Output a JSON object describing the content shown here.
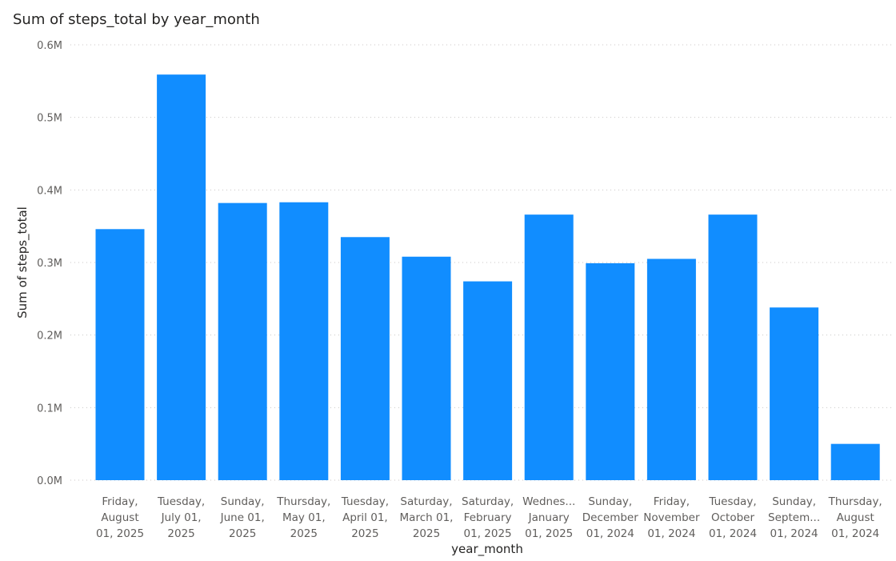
{
  "chart_data": {
    "type": "bar",
    "title": "Sum of steps_total by year_month",
    "xlabel": "year_month",
    "ylabel": "Sum of steps_total",
    "ylim": [
      0,
      600000
    ],
    "yticks": [
      0,
      100000,
      200000,
      300000,
      400000,
      500000,
      600000
    ],
    "ytick_labels": [
      "0.0M",
      "0.1M",
      "0.2M",
      "0.3M",
      "0.4M",
      "0.5M",
      "0.6M"
    ],
    "grid": true,
    "bar_color": "#118DFF",
    "categories": [
      [
        "Friday,",
        "August",
        "01, 2025"
      ],
      [
        "Tuesday,",
        "July 01,",
        "2025"
      ],
      [
        "Sunday,",
        "June 01,",
        "2025"
      ],
      [
        "Thursday,",
        "May 01,",
        "2025"
      ],
      [
        "Tuesday,",
        "April 01,",
        "2025"
      ],
      [
        "Saturday,",
        "March 01,",
        "2025"
      ],
      [
        "Saturday,",
        "February",
        "01, 2025"
      ],
      [
        "Wednes...",
        "January",
        "01, 2025"
      ],
      [
        "Sunday,",
        "December",
        "01, 2024"
      ],
      [
        "Friday,",
        "November",
        "01, 2024"
      ],
      [
        "Tuesday,",
        "October",
        "01, 2024"
      ],
      [
        "Sunday,",
        "Septem...",
        "01, 2024"
      ],
      [
        "Thursday,",
        "August",
        "01, 2024"
      ]
    ],
    "values": [
      346000,
      559000,
      382000,
      383000,
      335000,
      308000,
      274000,
      366000,
      299000,
      305000,
      366000,
      238000,
      50000
    ]
  }
}
